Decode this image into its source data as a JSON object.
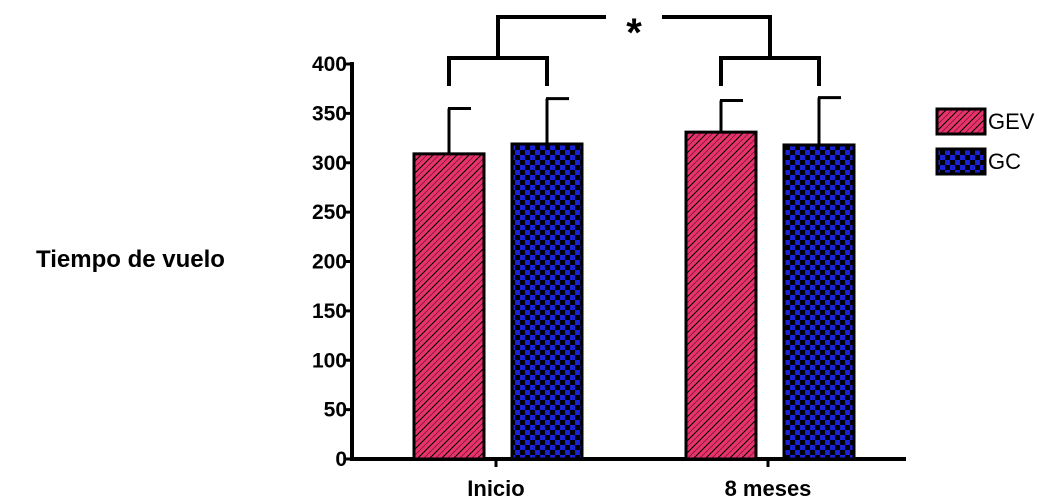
{
  "chart_data": {
    "type": "bar",
    "ylabel": "Tiempo de vuelo",
    "xlabel": "",
    "ylim": [
      0,
      400
    ],
    "yticks": [
      "0",
      "50",
      "100",
      "150",
      "200",
      "250",
      "300",
      "350",
      "400"
    ],
    "categories": [
      "Inicio",
      "8 meses"
    ],
    "series": [
      {
        "name": "GEV",
        "values": [
          309,
          331
        ],
        "errors": [
          46,
          32
        ],
        "color": "#e8336d"
      },
      {
        "name": "GC",
        "values": [
          319,
          318
        ],
        "errors": [
          46,
          48
        ],
        "color": "#1a22d8"
      }
    ],
    "legend": "top-right",
    "significance": "*",
    "grid": false
  }
}
